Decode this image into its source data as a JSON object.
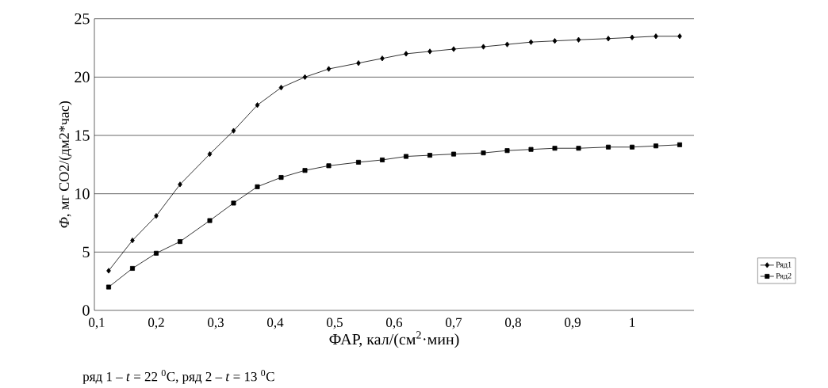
{
  "chart_data": {
    "type": "line",
    "xlabel": "ФАР, кал/(см$^{2}$·мин)",
    "ylabel": "*Ф*, мг СО2/(дм2*час)",
    "x": [
      0.12,
      0.16,
      0.2,
      0.24,
      0.29,
      0.33,
      0.37,
      0.41,
      0.45,
      0.49,
      0.54,
      0.58,
      0.62,
      0.66,
      0.7,
      0.75,
      0.79,
      0.83,
      0.87,
      0.91,
      0.96,
      1.0,
      1.04,
      1.08
    ],
    "series": [
      {
        "name": "Ряд1",
        "color": "#000000",
        "marker": "diamond",
        "values": [
          3.4,
          6.0,
          8.1,
          10.8,
          13.4,
          15.4,
          17.6,
          19.1,
          20.0,
          20.7,
          21.2,
          21.6,
          22.0,
          22.2,
          22.4,
          22.6,
          22.8,
          23.0,
          23.1,
          23.2,
          23.3,
          23.4,
          23.5,
          23.5
        ]
      },
      {
        "name": "Ряд2",
        "color": "#000000",
        "marker": "square",
        "values": [
          2.0,
          3.6,
          4.9,
          5.9,
          7.7,
          9.2,
          10.6,
          11.4,
          12.0,
          12.4,
          12.7,
          12.9,
          13.2,
          13.3,
          13.4,
          13.5,
          13.7,
          13.8,
          13.9,
          13.9,
          14.0,
          14.0,
          14.1,
          14.2
        ]
      }
    ],
    "xlim": [
      0.096,
      1.104
    ],
    "ylim": [
      0,
      25
    ],
    "xticks": [
      {
        "value": 0.1,
        "label": "0,1"
      },
      {
        "value": 0.2,
        "label": "0,2"
      },
      {
        "value": 0.3,
        "label": "0,3"
      },
      {
        "value": 0.4,
        "label": "0,4"
      },
      {
        "value": 0.5,
        "label": "0,5"
      },
      {
        "value": 0.6,
        "label": "0,6"
      },
      {
        "value": 0.7,
        "label": "0,7"
      },
      {
        "value": 0.8,
        "label": "0,8"
      },
      {
        "value": 0.9,
        "label": "0,9"
      },
      {
        "value": 1,
        "label": "1"
      }
    ],
    "yticks": [
      0,
      5,
      10,
      15,
      20,
      25
    ],
    "grid": "y",
    "legend": "right",
    "line_style": "solid",
    "annotations": [
      "ряд 1 – *t* = 22 $^{0}$C, ряд 2 – *t* = 13 $^{0}$C"
    ]
  }
}
